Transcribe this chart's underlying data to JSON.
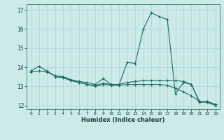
{
  "xlabel": "Humidex (Indice chaleur)",
  "bg_color": "#cceaea",
  "line_color": "#1e6b5e",
  "grid_color": "#b0d8d8",
  "x_values": [
    0,
    1,
    2,
    3,
    4,
    5,
    6,
    7,
    8,
    9,
    10,
    11,
    12,
    13,
    14,
    15,
    16,
    17,
    18,
    19,
    20,
    21,
    22,
    23
  ],
  "line1": [
    13.8,
    14.05,
    13.8,
    13.55,
    13.5,
    13.35,
    13.25,
    13.2,
    13.1,
    13.4,
    13.1,
    13.1,
    14.25,
    14.2,
    16.0,
    16.85,
    16.65,
    16.5,
    12.6,
    13.2,
    13.1,
    12.15,
    12.2,
    12.05
  ],
  "line2": [
    13.75,
    13.8,
    13.75,
    13.55,
    13.5,
    13.3,
    13.2,
    13.1,
    13.05,
    13.15,
    13.1,
    13.1,
    13.2,
    13.25,
    13.3,
    13.3,
    13.3,
    13.3,
    13.3,
    13.25,
    13.1,
    12.2,
    12.2,
    12.05
  ],
  "line3": [
    null,
    null,
    null,
    13.5,
    13.45,
    13.3,
    13.2,
    13.1,
    13.0,
    13.1,
    13.05,
    13.05,
    13.1,
    13.1,
    13.1,
    13.1,
    13.1,
    13.05,
    12.9,
    12.7,
    12.5,
    12.2,
    12.15,
    12.0
  ],
  "ylim": [
    11.8,
    17.3
  ],
  "xlim": [
    -0.5,
    23.5
  ],
  "yticks": [
    12,
    13,
    14,
    15,
    16,
    17
  ],
  "xticks": [
    0,
    1,
    2,
    3,
    4,
    5,
    6,
    7,
    8,
    9,
    10,
    11,
    12,
    13,
    14,
    15,
    16,
    17,
    18,
    19,
    20,
    21,
    22,
    23
  ]
}
